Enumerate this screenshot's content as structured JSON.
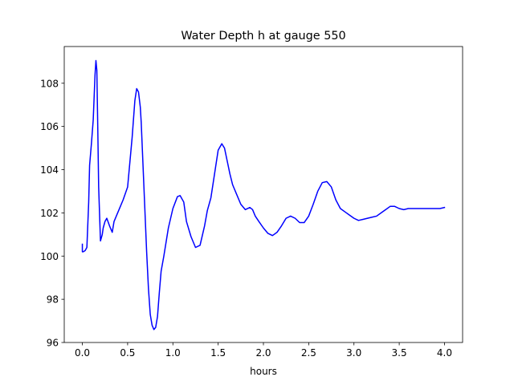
{
  "chart_data": {
    "type": "line",
    "title": "Water Depth h at gauge 550",
    "xlabel": "hours",
    "ylabel": "",
    "xlim": [
      -0.2,
      4.2
    ],
    "ylim": [
      96,
      109.7
    ],
    "x_ticks": [
      0.0,
      0.5,
      1.0,
      1.5,
      2.0,
      2.5,
      3.0,
      3.5,
      4.0
    ],
    "x_tick_labels": [
      "0.0",
      "0.5",
      "1.0",
      "1.5",
      "2.0",
      "2.5",
      "3.0",
      "3.5",
      "4.0"
    ],
    "y_ticks": [
      96,
      98,
      100,
      102,
      104,
      106,
      108
    ],
    "y_tick_labels": [
      "96",
      "98",
      "100",
      "102",
      "104",
      "106",
      "108"
    ],
    "grid": false,
    "series": [
      {
        "color": "#0000ff",
        "x": [
          0.0,
          0.0,
          0.01,
          0.03,
          0.05,
          0.07,
          0.08,
          0.1,
          0.12,
          0.14,
          0.15,
          0.16,
          0.17,
          0.18,
          0.2,
          0.22,
          0.23,
          0.25,
          0.27,
          0.3,
          0.33,
          0.35,
          0.38,
          0.4,
          0.42,
          0.45,
          0.5,
          0.55,
          0.58,
          0.6,
          0.62,
          0.64,
          0.65,
          0.67,
          0.69,
          0.71,
          0.73,
          0.75,
          0.77,
          0.79,
          0.81,
          0.83,
          0.85,
          0.87,
          0.9,
          0.95,
          1.0,
          1.05,
          1.08,
          1.12,
          1.15,
          1.2,
          1.25,
          1.3,
          1.35,
          1.38,
          1.42,
          1.46,
          1.5,
          1.54,
          1.57,
          1.6,
          1.63,
          1.66,
          1.7,
          1.75,
          1.8,
          1.85,
          1.88,
          1.91,
          1.95,
          2.0,
          2.05,
          2.1,
          2.15,
          2.2,
          2.25,
          2.3,
          2.35,
          2.4,
          2.45,
          2.5,
          2.55,
          2.6,
          2.65,
          2.7,
          2.75,
          2.8,
          2.85,
          2.9,
          2.95,
          3.0,
          3.05,
          3.1,
          3.15,
          3.2,
          3.25,
          3.3,
          3.35,
          3.4,
          3.45,
          3.5,
          3.55,
          3.6,
          3.65,
          3.7,
          3.75,
          3.8,
          3.85,
          3.9,
          3.95,
          4.0
        ],
        "y": [
          100.55,
          100.2,
          100.2,
          100.25,
          100.4,
          102.5,
          104.2,
          105.2,
          106.3,
          108.4,
          109.05,
          108.6,
          106.0,
          103.2,
          100.7,
          101.0,
          101.3,
          101.6,
          101.75,
          101.4,
          101.1,
          101.6,
          101.9,
          102.1,
          102.3,
          102.6,
          103.2,
          105.5,
          107.2,
          107.75,
          107.6,
          106.9,
          106.2,
          104.2,
          102.2,
          100.2,
          98.5,
          97.3,
          96.8,
          96.6,
          96.7,
          97.2,
          98.3,
          99.3,
          100.0,
          101.3,
          102.2,
          102.75,
          102.8,
          102.5,
          101.6,
          100.9,
          100.4,
          100.5,
          101.4,
          102.1,
          102.7,
          103.8,
          104.9,
          105.2,
          105.0,
          104.4,
          103.8,
          103.3,
          102.9,
          102.4,
          102.15,
          102.25,
          102.15,
          101.85,
          101.6,
          101.3,
          101.05,
          100.95,
          101.1,
          101.4,
          101.75,
          101.85,
          101.75,
          101.55,
          101.55,
          101.85,
          102.4,
          103.0,
          103.4,
          103.45,
          103.2,
          102.6,
          102.2,
          102.05,
          101.9,
          101.75,
          101.65,
          101.7,
          101.75,
          101.8,
          101.85,
          102.0,
          102.15,
          102.3,
          102.3,
          102.2,
          102.15,
          102.2,
          102.2,
          102.2,
          102.2,
          102.2,
          102.2,
          102.2,
          102.2,
          102.25
        ]
      }
    ]
  }
}
